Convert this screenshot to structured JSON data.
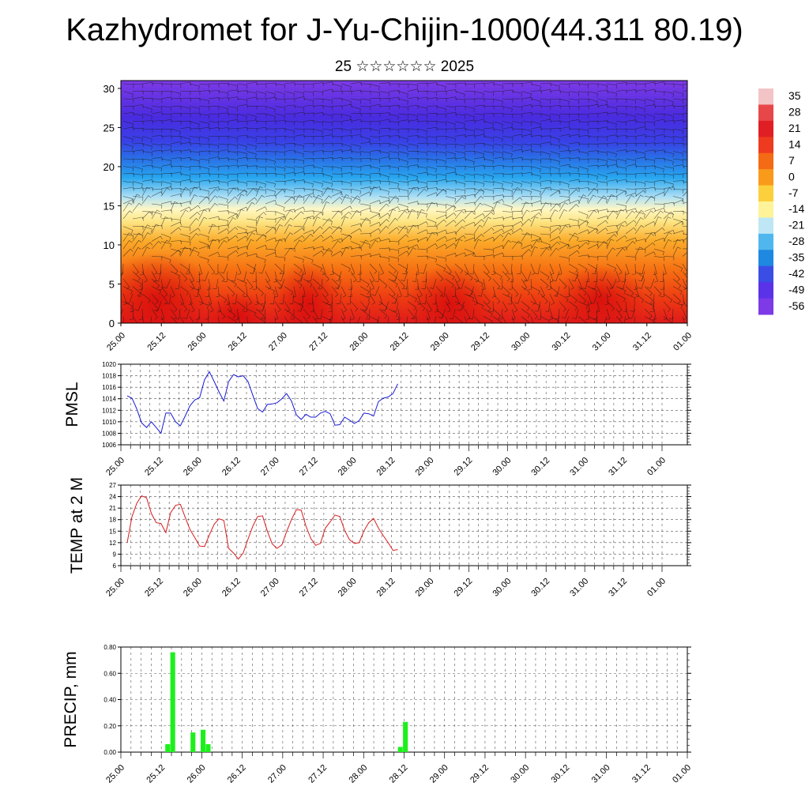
{
  "title": "Kazhydromet for J-Yu-Chijin-1000(44.311 80.19)",
  "subtitle": "25 ☆☆☆☆☆☆ 2025",
  "time_ticks": [
    "25.00",
    "25.12",
    "26.00",
    "26.12",
    "27.00",
    "27.12",
    "28.00",
    "28.12",
    "29.00",
    "29.12",
    "30.00",
    "30.12",
    "31.00",
    "31.12",
    "01.00"
  ],
  "colorbar": {
    "labels": [
      "35",
      "28",
      "21",
      "14",
      "7",
      "0",
      "-7",
      "-14",
      "-21",
      "-28",
      "-35",
      "-42",
      "-49",
      "-56"
    ],
    "colors": [
      "#f3c4c6",
      "#e8474a",
      "#e01f24",
      "#ee3a1e",
      "#f56a14",
      "#f99a1a",
      "#fbd03c",
      "#fff39a",
      "#bfe6f5",
      "#4fb7ee",
      "#1f88e0",
      "#3a4ee6",
      "#5a33e8",
      "#7d3ae6"
    ]
  },
  "chart_data": [
    {
      "type": "heatmap",
      "name_hint": "upper-air temperature and wind",
      "x": [
        "25.00",
        "25.12",
        "26.00",
        "26.12",
        "27.00",
        "27.12",
        "28.00",
        "28.12",
        "29.00",
        "29.12",
        "30.00",
        "30.12",
        "31.00",
        "31.12",
        "01.00"
      ],
      "y_ticks": [
        0,
        5,
        10,
        15,
        20,
        25,
        30
      ],
      "ylim": [
        0,
        31
      ],
      "value_range": [
        -56,
        35
      ]
    },
    {
      "type": "line",
      "ylabel": "PMSL",
      "ylim": [
        1006,
        1020
      ],
      "y_ticks": [
        "1006",
        "1008",
        "1010",
        "1012",
        "1014",
        "1016",
        "1018",
        "1020"
      ],
      "color": "#1a1ad8",
      "x_step_hours": 3,
      "values": [
        1014.5,
        1014.1,
        1012.2,
        1009.8,
        1009.0,
        1010.0,
        1009.0,
        1008.0,
        1011.5,
        1011.5,
        1010.0,
        1009.3,
        1011.0,
        1012.8,
        1013.8,
        1014.2,
        1017.3,
        1018.7,
        1017.0,
        1015.2,
        1013.6,
        1017.0,
        1018.2,
        1017.8,
        1018.0,
        1017.0,
        1014.6,
        1012.3,
        1011.7,
        1013.0,
        1013.1,
        1013.3,
        1014.0,
        1014.9,
        1013.6,
        1011.2,
        1010.4,
        1011.3,
        1010.8,
        1010.8,
        1011.5,
        1011.8,
        1011.4,
        1009.4,
        1009.5,
        1010.8,
        1010.3,
        1009.7,
        1010.2,
        1011.5,
        1011.4,
        1011.0,
        1013.5,
        1014.1,
        1014.3,
        1014.9,
        1016.6
      ]
    },
    {
      "type": "line",
      "ylabel": "TEMP at 2 M",
      "ylim": [
        6,
        27
      ],
      "y_ticks": [
        "6",
        "9",
        "12",
        "15",
        "18",
        "21",
        "24",
        "27"
      ],
      "color": "#d81c1c",
      "x_step_hours": 3,
      "values": [
        12.0,
        18.8,
        22.3,
        24.2,
        23.7,
        19.6,
        17.2,
        17.0,
        14.6,
        19.8,
        21.7,
        22.0,
        18.6,
        15.4,
        13.3,
        11.1,
        11.0,
        14.0,
        16.8,
        18.2,
        17.8,
        10.5,
        9.3,
        7.7,
        9.3,
        12.9,
        16.3,
        18.8,
        19.0,
        15.0,
        11.7,
        10.5,
        11.4,
        14.9,
        18.0,
        20.6,
        20.5,
        16.3,
        13.1,
        11.3,
        11.8,
        15.8,
        17.4,
        19.2,
        18.8,
        15.2,
        12.8,
        11.8,
        12.0,
        15.1,
        17.2,
        18.3,
        15.8,
        13.8,
        12.0,
        10.0,
        10.2
      ]
    },
    {
      "type": "bar",
      "ylabel": "PRECIP, mm",
      "ylim": [
        0,
        0.8
      ],
      "y_ticks": [
        "0.00",
        "0.20",
        "0.40",
        "0.60",
        "0.80"
      ],
      "color": "#1cf01c",
      "x_step_hours": 3,
      "values": [
        0,
        0,
        0,
        0,
        0,
        0,
        0,
        0,
        0.06,
        0.76,
        0,
        0,
        0,
        0.15,
        0,
        0.17,
        0.06,
        0,
        0,
        0,
        0,
        0,
        0,
        0,
        0,
        0,
        0,
        0,
        0,
        0,
        0,
        0,
        0,
        0,
        0,
        0,
        0,
        0,
        0,
        0,
        0,
        0,
        0,
        0,
        0,
        0,
        0,
        0,
        0,
        0,
        0,
        0,
        0,
        0,
        0.04,
        0.23,
        0
      ]
    }
  ]
}
